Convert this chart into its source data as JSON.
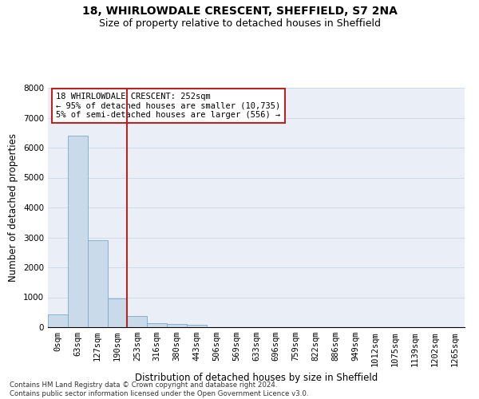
{
  "title_line1": "18, WHIRLOWDALE CRESCENT, SHEFFIELD, S7 2NA",
  "title_line2": "Size of property relative to detached houses in Sheffield",
  "xlabel": "Distribution of detached houses by size in Sheffield",
  "ylabel": "Number of detached properties",
  "categories": [
    "0sqm",
    "63sqm",
    "127sqm",
    "190sqm",
    "253sqm",
    "316sqm",
    "380sqm",
    "443sqm",
    "506sqm",
    "569sqm",
    "633sqm",
    "696sqm",
    "759sqm",
    "822sqm",
    "886sqm",
    "949sqm",
    "1012sqm",
    "1075sqm",
    "1139sqm",
    "1202sqm",
    "1265sqm"
  ],
  "values": [
    430,
    6400,
    2900,
    950,
    380,
    140,
    100,
    70,
    0,
    0,
    0,
    0,
    0,
    0,
    0,
    0,
    0,
    0,
    0,
    0,
    0
  ],
  "bar_color": "#c9daea",
  "bar_edge_color": "#7aaac8",
  "property_line_x": 3.5,
  "annotation_text": "18 WHIRLOWDALE CRESCENT: 252sqm\n← 95% of detached houses are smaller (10,735)\n5% of semi-detached houses are larger (556) →",
  "annotation_box_color": "#bb2222",
  "line_color": "#bb2222",
  "grid_color": "#ccd8e8",
  "background_color": "#eaeff7",
  "ylim": [
    0,
    8000
  ],
  "yticks": [
    0,
    1000,
    2000,
    3000,
    4000,
    5000,
    6000,
    7000,
    8000
  ],
  "footnote": "Contains HM Land Registry data © Crown copyright and database right 2024.\nContains public sector information licensed under the Open Government Licence v3.0.",
  "title_fontsize": 10,
  "subtitle_fontsize": 9,
  "axis_label_fontsize": 8.5,
  "tick_fontsize": 7.5,
  "annotation_fontsize": 7.5
}
